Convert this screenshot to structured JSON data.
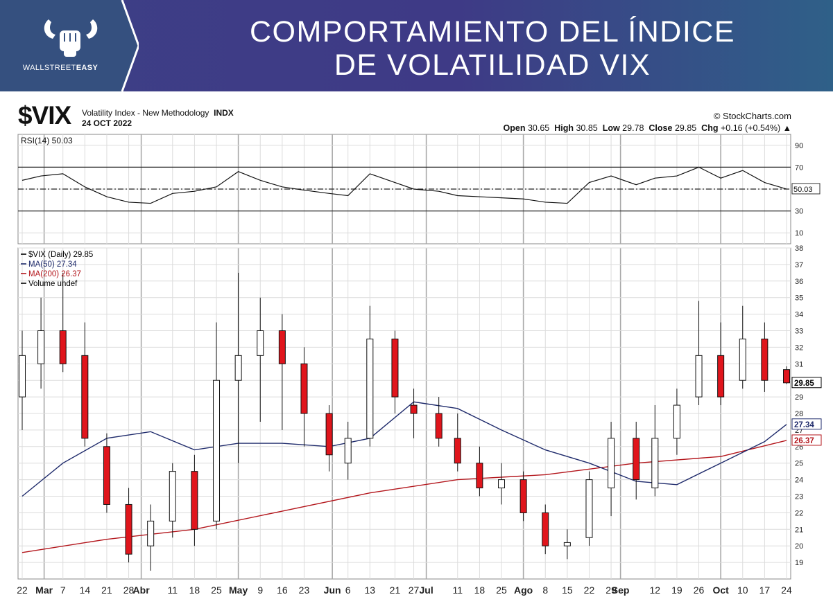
{
  "banner": {
    "logo_text_a": "WALLSTREET",
    "logo_text_b": "EASY",
    "title_line1": "COMPORTAMIENTO DEL ÍNDICE",
    "title_line2": "DE VOLATILIDAD VIX"
  },
  "header": {
    "ticker": "$VIX",
    "description": "Volatility Index - New Methodology",
    "exchange": "INDX",
    "date": "24 OCT 2022",
    "source": "© StockCharts.com",
    "ohlc": {
      "open_label": "Open",
      "open": "30.65",
      "high_label": "High",
      "high": "30.85",
      "low_label": "Low",
      "low": "29.78",
      "close_label": "Close",
      "close": "29.85",
      "chg_label": "Chg",
      "chg": "+0.16 (+0.54%)"
    }
  },
  "colors": {
    "up": "#ffffff",
    "down": "#e0151c",
    "ma50": "#1e2a6b",
    "ma200": "#b3151b",
    "banner": "#3d3f86"
  },
  "chart_data": [
    {
      "type": "line",
      "title": "RSI(14) 50.03",
      "ylim": [
        0,
        100
      ],
      "yticks": [
        90,
        70,
        50,
        30,
        10
      ],
      "reference_lines": [
        70,
        50,
        30
      ],
      "last_label": "50.03",
      "grid": true,
      "x": [
        "2022-02-22",
        "2022-02-28",
        "2022-03-07",
        "2022-03-14",
        "2022-03-21",
        "2022-03-28",
        "2022-04-04",
        "2022-04-11",
        "2022-04-18",
        "2022-04-25",
        "2022-05-02",
        "2022-05-09",
        "2022-05-16",
        "2022-05-23",
        "2022-05-31",
        "2022-06-06",
        "2022-06-13",
        "2022-06-21",
        "2022-06-27",
        "2022-07-05",
        "2022-07-11",
        "2022-07-18",
        "2022-07-25",
        "2022-08-01",
        "2022-08-08",
        "2022-08-15",
        "2022-08-22",
        "2022-08-29",
        "2022-09-06",
        "2022-09-12",
        "2022-09-19",
        "2022-09-26",
        "2022-10-03",
        "2022-10-10",
        "2022-10-17",
        "2022-10-24"
      ],
      "values": [
        58,
        62,
        64,
        52,
        43,
        38,
        37,
        46,
        48,
        52,
        66,
        58,
        52,
        49,
        46,
        44,
        64,
        56,
        50,
        48,
        44,
        43,
        42,
        41,
        38,
        37,
        56,
        62,
        54,
        60,
        62,
        70,
        60,
        67,
        56,
        50.03
      ]
    },
    {
      "type": "candlestick",
      "title": "$VIX (Daily) 29.85",
      "ylim": [
        18,
        38
      ],
      "yticks": [
        19,
        20,
        21,
        22,
        23,
        24,
        25,
        26,
        27,
        28,
        29,
        30,
        31,
        32,
        33,
        34,
        35,
        36,
        37,
        38
      ],
      "legend": [
        {
          "name": "$VIX (Daily) 29.85",
          "color": "#000000"
        },
        {
          "name": "MA(50) 27.34",
          "color": "#1e2a6b"
        },
        {
          "name": "MA(200) 26.37",
          "color": "#b3151b"
        },
        {
          "name": "Volume undef",
          "color": "#000000"
        }
      ],
      "last_labels": [
        {
          "text": "29.85",
          "value": 29.85,
          "color": "#000000"
        },
        {
          "text": "27.34",
          "value": 27.34,
          "color": "#1e2a6b"
        },
        {
          "text": "26.37",
          "value": 26.37,
          "color": "#b3151b"
        }
      ],
      "x_tick_labels": [
        {
          "label": "22",
          "date": "2022-02-22",
          "bold": false
        },
        {
          "label": "Mar",
          "date": "2022-03-01",
          "bold": true
        },
        {
          "label": "7",
          "date": "2022-03-07",
          "bold": false
        },
        {
          "label": "14",
          "date": "2022-03-14",
          "bold": false
        },
        {
          "label": "21",
          "date": "2022-03-21",
          "bold": false
        },
        {
          "label": "28",
          "date": "2022-03-28",
          "bold": false
        },
        {
          "label": "Abr",
          "date": "2022-04-01",
          "bold": true
        },
        {
          "label": "11",
          "date": "2022-04-11",
          "bold": false
        },
        {
          "label": "18",
          "date": "2022-04-18",
          "bold": false
        },
        {
          "label": "25",
          "date": "2022-04-25",
          "bold": false
        },
        {
          "label": "May",
          "date": "2022-05-02",
          "bold": true
        },
        {
          "label": "9",
          "date": "2022-05-09",
          "bold": false
        },
        {
          "label": "16",
          "date": "2022-05-16",
          "bold": false
        },
        {
          "label": "23",
          "date": "2022-05-23",
          "bold": false
        },
        {
          "label": "Jun",
          "date": "2022-06-01",
          "bold": true
        },
        {
          "label": "6",
          "date": "2022-06-06",
          "bold": false
        },
        {
          "label": "13",
          "date": "2022-06-13",
          "bold": false
        },
        {
          "label": "21",
          "date": "2022-06-21",
          "bold": false
        },
        {
          "label": "27",
          "date": "2022-06-27",
          "bold": false
        },
        {
          "label": "Jul",
          "date": "2022-07-01",
          "bold": true
        },
        {
          "label": "11",
          "date": "2022-07-11",
          "bold": false
        },
        {
          "label": "18",
          "date": "2022-07-18",
          "bold": false
        },
        {
          "label": "25",
          "date": "2022-07-25",
          "bold": false
        },
        {
          "label": "Ago",
          "date": "2022-08-01",
          "bold": true
        },
        {
          "label": "8",
          "date": "2022-08-08",
          "bold": false
        },
        {
          "label": "15",
          "date": "2022-08-15",
          "bold": false
        },
        {
          "label": "22",
          "date": "2022-08-22",
          "bold": false
        },
        {
          "label": "29",
          "date": "2022-08-29",
          "bold": false
        },
        {
          "label": "Sep",
          "date": "2022-09-01",
          "bold": true
        },
        {
          "label": "12",
          "date": "2022-09-12",
          "bold": false
        },
        {
          "label": "19",
          "date": "2022-09-19",
          "bold": false
        },
        {
          "label": "26",
          "date": "2022-09-26",
          "bold": false
        },
        {
          "label": "Oct",
          "date": "2022-10-03",
          "bold": true
        },
        {
          "label": "10",
          "date": "2022-10-10",
          "bold": false
        },
        {
          "label": "17",
          "date": "2022-10-17",
          "bold": false
        },
        {
          "label": "24",
          "date": "2022-10-24",
          "bold": false
        }
      ],
      "candles": [
        {
          "date": "2022-02-22",
          "o": 29.0,
          "h": 33.0,
          "l": 27.0,
          "c": 31.5
        },
        {
          "date": "2022-02-28",
          "o": 31.0,
          "h": 35.0,
          "l": 29.5,
          "c": 33.0
        },
        {
          "date": "2022-03-07",
          "o": 33.0,
          "h": 36.5,
          "l": 30.5,
          "c": 31.0
        },
        {
          "date": "2022-03-14",
          "o": 31.5,
          "h": 33.5,
          "l": 26.0,
          "c": 26.5
        },
        {
          "date": "2022-03-21",
          "o": 26.0,
          "h": 26.8,
          "l": 22.0,
          "c": 22.5
        },
        {
          "date": "2022-03-28",
          "o": 22.5,
          "h": 23.5,
          "l": 19.0,
          "c": 19.5
        },
        {
          "date": "2022-04-04",
          "o": 20.0,
          "h": 22.5,
          "l": 18.5,
          "c": 21.5
        },
        {
          "date": "2022-04-11",
          "o": 21.5,
          "h": 25.0,
          "l": 20.5,
          "c": 24.5
        },
        {
          "date": "2022-04-18",
          "o": 24.5,
          "h": 25.5,
          "l": 20.0,
          "c": 21.0
        },
        {
          "date": "2022-04-25",
          "o": 21.5,
          "h": 33.5,
          "l": 21.0,
          "c": 30.0
        },
        {
          "date": "2022-05-02",
          "o": 30.0,
          "h": 36.5,
          "l": 25.0,
          "c": 31.5
        },
        {
          "date": "2022-05-09",
          "o": 31.5,
          "h": 35.0,
          "l": 27.5,
          "c": 33.0
        },
        {
          "date": "2022-05-16",
          "o": 33.0,
          "h": 34.0,
          "l": 27.0,
          "c": 31.0
        },
        {
          "date": "2022-05-23",
          "o": 31.0,
          "h": 32.0,
          "l": 26.0,
          "c": 28.0
        },
        {
          "date": "2022-05-31",
          "o": 28.0,
          "h": 28.5,
          "l": 24.5,
          "c": 25.5
        },
        {
          "date": "2022-06-06",
          "o": 25.0,
          "h": 27.5,
          "l": 24.0,
          "c": 26.5
        },
        {
          "date": "2022-06-13",
          "o": 26.5,
          "h": 34.5,
          "l": 26.0,
          "c": 32.5
        },
        {
          "date": "2022-06-21",
          "o": 32.5,
          "h": 33.0,
          "l": 28.0,
          "c": 29.0
        },
        {
          "date": "2022-06-27",
          "o": 28.5,
          "h": 29.5,
          "l": 26.5,
          "c": 28.0
        },
        {
          "date": "2022-07-05",
          "o": 28.0,
          "h": 29.0,
          "l": 26.0,
          "c": 26.5
        },
        {
          "date": "2022-07-11",
          "o": 26.5,
          "h": 28.0,
          "l": 24.5,
          "c": 25.0
        },
        {
          "date": "2022-07-18",
          "o": 25.0,
          "h": 26.0,
          "l": 23.0,
          "c": 23.5
        },
        {
          "date": "2022-07-25",
          "o": 23.5,
          "h": 25.0,
          "l": 22.5,
          "c": 24.0
        },
        {
          "date": "2022-08-01",
          "o": 24.0,
          "h": 24.5,
          "l": 21.5,
          "c": 22.0
        },
        {
          "date": "2022-08-08",
          "o": 22.0,
          "h": 22.5,
          "l": 19.5,
          "c": 20.0
        },
        {
          "date": "2022-08-15",
          "o": 20.0,
          "h": 21.0,
          "l": 19.2,
          "c": 20.2
        },
        {
          "date": "2022-08-22",
          "o": 20.5,
          "h": 24.5,
          "l": 20.0,
          "c": 24.0
        },
        {
          "date": "2022-08-29",
          "o": 23.5,
          "h": 27.5,
          "l": 21.8,
          "c": 26.5
        },
        {
          "date": "2022-09-06",
          "o": 26.5,
          "h": 27.5,
          "l": 22.8,
          "c": 24.0
        },
        {
          "date": "2022-09-12",
          "o": 23.5,
          "h": 28.5,
          "l": 23.0,
          "c": 26.5
        },
        {
          "date": "2022-09-19",
          "o": 26.5,
          "h": 29.5,
          "l": 25.5,
          "c": 28.5
        },
        {
          "date": "2022-09-26",
          "o": 29.0,
          "h": 34.8,
          "l": 28.5,
          "c": 31.5
        },
        {
          "date": "2022-10-03",
          "o": 31.5,
          "h": 33.5,
          "l": 28.5,
          "c": 29.0
        },
        {
          "date": "2022-10-10",
          "o": 30.0,
          "h": 34.5,
          "l": 29.5,
          "c": 32.5
        },
        {
          "date": "2022-10-17",
          "o": 32.5,
          "h": 33.5,
          "l": 29.3,
          "c": 30.0
        },
        {
          "date": "2022-10-24",
          "o": 30.65,
          "h": 30.85,
          "l": 29.78,
          "c": 29.85
        }
      ],
      "ma50": {
        "x": [
          "2022-02-22",
          "2022-03-07",
          "2022-03-21",
          "2022-04-04",
          "2022-04-18",
          "2022-05-02",
          "2022-05-16",
          "2022-05-31",
          "2022-06-13",
          "2022-06-27",
          "2022-07-11",
          "2022-07-25",
          "2022-08-08",
          "2022-08-22",
          "2022-09-06",
          "2022-09-19",
          "2022-10-03",
          "2022-10-17",
          "2022-10-24"
        ],
        "values": [
          23.0,
          25.0,
          26.5,
          26.9,
          25.8,
          26.2,
          26.2,
          26.0,
          26.5,
          28.7,
          28.3,
          27.0,
          25.8,
          25.0,
          23.9,
          23.7,
          25.0,
          26.3,
          27.34
        ]
      },
      "ma200": {
        "x": [
          "2022-02-22",
          "2022-03-21",
          "2022-04-18",
          "2022-05-16",
          "2022-06-13",
          "2022-07-11",
          "2022-08-08",
          "2022-09-06",
          "2022-10-03",
          "2022-10-24"
        ],
        "values": [
          19.6,
          20.4,
          21.0,
          22.1,
          23.2,
          24.0,
          24.3,
          25.0,
          25.4,
          26.37
        ]
      }
    }
  ]
}
